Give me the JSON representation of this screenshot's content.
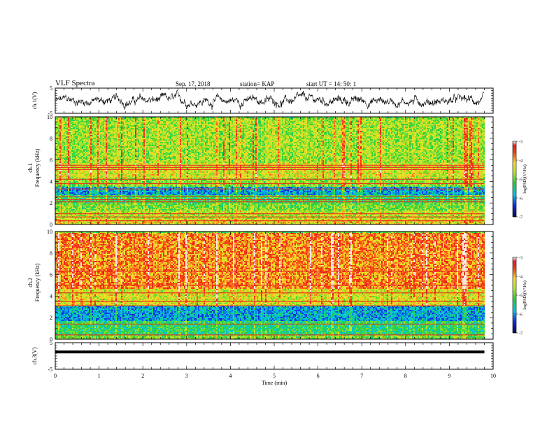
{
  "header": {
    "title": "VLF Spectra",
    "date": "Sep. 17, 2018",
    "station": "station= KAP",
    "start": "start  UT  =   14: 50: 1"
  },
  "chart_data": [
    {
      "type": "line",
      "panel": "ch1-waveform",
      "ylabel": "ch.1(V)",
      "ylim": [
        -5,
        5
      ],
      "yticks": [
        -5,
        5
      ],
      "xlim": [
        0,
        10
      ],
      "x_extent": [
        0,
        9.8
      ],
      "description_of_trace": "noisy waveform fluctuating roughly between -3 and +3 V"
    },
    {
      "type": "heatmap",
      "panel": "ch1-spectrogram",
      "ylabel": "Frequency (kHz)",
      "channel_label": "ch.1",
      "ylim": [
        0,
        10
      ],
      "yticks": [
        0,
        2,
        4,
        6,
        8,
        10
      ],
      "xlim": [
        0,
        10
      ],
      "x_extent": [
        0,
        9.8
      ],
      "colorbar": {
        "label": "log(PSD)(V²/Hz)",
        "range": [
          -7,
          -3
        ],
        "ticks": [
          -3,
          -4,
          -5,
          -6,
          -7
        ]
      },
      "bands": [
        {
          "from": 0,
          "to": 0.6,
          "level": -4.3
        },
        {
          "from": 0.6,
          "to": 1.4,
          "level": -4.6
        },
        {
          "from": 1.4,
          "to": 2.0,
          "level": -4.9
        },
        {
          "from": 2.0,
          "to": 2.8,
          "level": -5.2
        },
        {
          "from": 2.8,
          "to": 3.6,
          "level": -5.9
        },
        {
          "from": 3.6,
          "to": 4.4,
          "level": -4.8
        },
        {
          "from": 4.4,
          "to": 5.8,
          "level": -4.4
        },
        {
          "from": 5.8,
          "to": 10.0,
          "level": -4.7
        }
      ],
      "lines_khz": [
        0.35,
        0.7,
        1.0,
        2.1,
        2.3,
        2.6,
        3.3,
        3.8,
        4.2,
        5.1,
        5.3,
        5.5
      ]
    },
    {
      "type": "heatmap",
      "panel": "ch2-spectrogram",
      "ylabel": "Frequency (kHz)",
      "channel_label": "ch.2",
      "ylim": [
        0,
        10
      ],
      "yticks": [
        0,
        2,
        4,
        6,
        8,
        10
      ],
      "xlim": [
        0,
        10
      ],
      "x_extent": [
        0,
        9.8
      ],
      "colorbar": {
        "label": "log(PSD)(V²/Hz)",
        "range": [
          -7,
          -3
        ],
        "ticks": [
          -3,
          -4,
          -5,
          -6,
          -7
        ]
      },
      "bands": [
        {
          "from": 0,
          "to": 0.5,
          "level": -4.9
        },
        {
          "from": 0.5,
          "to": 1.8,
          "level": -5.3
        },
        {
          "from": 1.8,
          "to": 3.2,
          "level": -5.9
        },
        {
          "from": 3.2,
          "to": 4.8,
          "level": -4.4
        },
        {
          "from": 4.8,
          "to": 10.0,
          "level": -3.8
        }
      ],
      "lines_khz": [
        0.4,
        1.4,
        3.1,
        3.5,
        4.3,
        5.0,
        6.3
      ]
    },
    {
      "type": "line",
      "panel": "ch3-waveform",
      "ylabel": "ch.3(V)",
      "xlabel": "Time  (min)",
      "ylim": [
        -5,
        5
      ],
      "yticks": [
        -5,
        5
      ],
      "xlim": [
        0,
        10
      ],
      "xticks": [
        0,
        1,
        2,
        3,
        4,
        5,
        6,
        7,
        8,
        9,
        10
      ],
      "x_extent": [
        0,
        9.8
      ],
      "y": [
        1.5,
        1.5
      ]
    }
  ]
}
